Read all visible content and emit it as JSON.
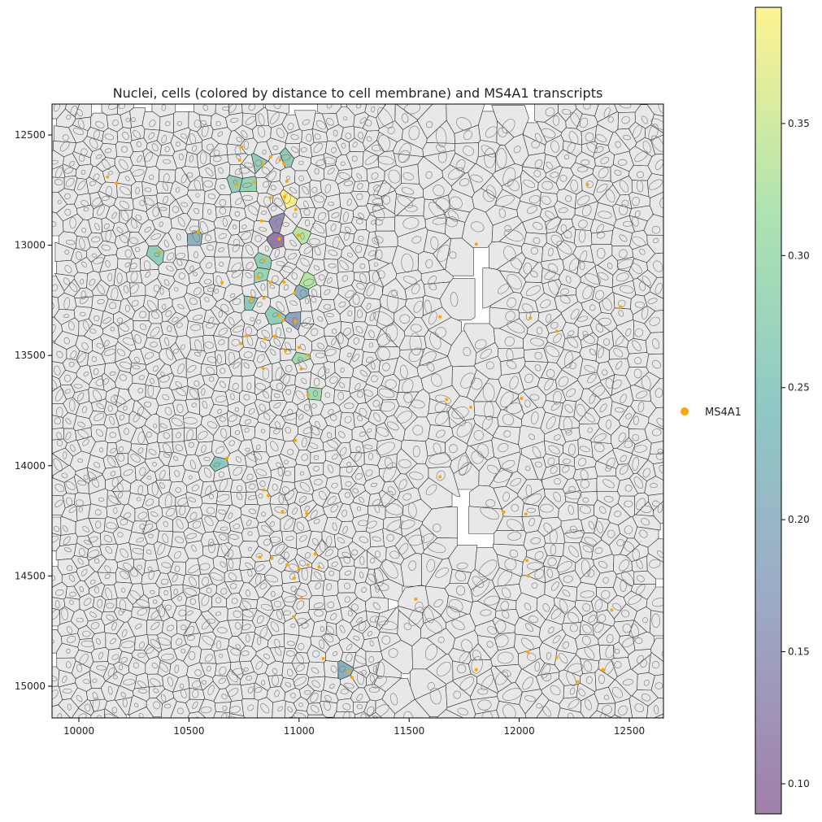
{
  "chart_data": {
    "type": "scatter",
    "title": "Nuclei, cells (colored by distance to cell membrane) and MS4A1 transcripts",
    "xlim": [
      9878,
      12655
    ],
    "ylim": [
      15144,
      12360
    ],
    "y_inverted": true,
    "xticks": [
      10000,
      10500,
      11000,
      11500,
      12000,
      12500
    ],
    "yticks": [
      12500,
      13000,
      13500,
      14000,
      14500,
      15000
    ],
    "grid": false,
    "cell_fill_default": "#e8e8e8",
    "colorbar": {
      "colormap": "viridis",
      "alpha": 0.5,
      "range": [
        0.0886,
        0.394
      ],
      "ticks": [
        "0.10",
        "0.15",
        "0.20",
        "0.25",
        "0.30",
        "0.35"
      ],
      "tick_values": [
        0.1,
        0.15,
        0.2,
        0.25,
        0.3,
        0.35
      ]
    },
    "legend": {
      "placement": "right",
      "entries": [
        {
          "label": "MS4A1",
          "color": "#ffa500"
        }
      ]
    },
    "colored_cells": [
      {
        "x": 10915,
        "y": 12589,
        "value": 0.12
      },
      {
        "x": 10930,
        "y": 12781,
        "value": 0.39
      },
      {
        "x": 10904,
        "y": 12995,
        "value": 0.1
      },
      {
        "x": 10904,
        "y": 12877,
        "value": 0.13
      },
      {
        "x": 10845,
        "y": 13061,
        "value": 0.27
      },
      {
        "x": 10996,
        "y": 12958,
        "value": 0.33
      },
      {
        "x": 11044,
        "y": 13172,
        "value": 0.33
      },
      {
        "x": 10657,
        "y": 13969,
        "value": 0.25
      },
      {
        "x": 10361,
        "y": 13032,
        "value": 0.27
      },
      {
        "x": 10553,
        "y": 12947,
        "value": 0.21
      },
      {
        "x": 10823,
        "y": 13157,
        "value": 0.29
      },
      {
        "x": 10779,
        "y": 13246,
        "value": 0.26
      },
      {
        "x": 10908,
        "y": 13312,
        "value": 0.27
      },
      {
        "x": 10978,
        "y": 13216,
        "value": 0.21
      },
      {
        "x": 10982,
        "y": 13345,
        "value": 0.17
      },
      {
        "x": 11037,
        "y": 13504,
        "value": 0.3
      },
      {
        "x": 11044,
        "y": 13681,
        "value": 0.3
      },
      {
        "x": 10705,
        "y": 12725,
        "value": 0.27
      },
      {
        "x": 10779,
        "y": 12707,
        "value": 0.28
      },
      {
        "x": 10830,
        "y": 12626,
        "value": 0.27
      },
      {
        "x": 10944,
        "y": 12626,
        "value": 0.26
      },
      {
        "x": 11228,
        "y": 14939,
        "value": 0.2
      }
    ],
    "transcripts": {
      "gene": "MS4A1",
      "points": [
        [
          10914,
          12612
        ],
        [
          10931,
          12631
        ],
        [
          10870,
          12600
        ],
        [
          10837,
          12634
        ],
        [
          10717,
          12726
        ],
        [
          10797,
          12715
        ],
        [
          10935,
          12781
        ],
        [
          10985,
          12838
        ],
        [
          10830,
          12890
        ],
        [
          10870,
          12785
        ],
        [
          10910,
          12972
        ],
        [
          10997,
          12955
        ],
        [
          10842,
          13068
        ],
        [
          10542,
          12940
        ],
        [
          10365,
          13032
        ],
        [
          10815,
          13147
        ],
        [
          10870,
          13170
        ],
        [
          10932,
          13168
        ],
        [
          10784,
          13243
        ],
        [
          10840,
          13240
        ],
        [
          10912,
          13316
        ],
        [
          10980,
          13215
        ],
        [
          10985,
          13345
        ],
        [
          10890,
          13413
        ],
        [
          10928,
          13340
        ],
        [
          10737,
          13446
        ],
        [
          10762,
          13410
        ],
        [
          10845,
          13425
        ],
        [
          10938,
          13478
        ],
        [
          10999,
          13464
        ],
        [
          11040,
          13498
        ],
        [
          11010,
          13561
        ],
        [
          11040,
          13680
        ],
        [
          10835,
          13557
        ],
        [
          10983,
          13885
        ],
        [
          10673,
          13965
        ],
        [
          10840,
          14110
        ],
        [
          10860,
          14135
        ],
        [
          10925,
          14208
        ],
        [
          11035,
          14216
        ],
        [
          10822,
          14415
        ],
        [
          10877,
          14420
        ],
        [
          10945,
          14450
        ],
        [
          11000,
          14468
        ],
        [
          11040,
          14450
        ],
        [
          11073,
          14400
        ],
        [
          11090,
          14460
        ],
        [
          10978,
          14510
        ],
        [
          11010,
          14600
        ],
        [
          10975,
          14685
        ],
        [
          11110,
          14875
        ],
        [
          11225,
          14935
        ],
        [
          11240,
          14960
        ],
        [
          11530,
          14605
        ],
        [
          11640,
          14050
        ],
        [
          11670,
          13700
        ],
        [
          11780,
          13735
        ],
        [
          11640,
          13325
        ],
        [
          11805,
          12995
        ],
        [
          12050,
          13330
        ],
        [
          12010,
          13695
        ],
        [
          12030,
          14220
        ],
        [
          12035,
          14430
        ],
        [
          12040,
          14500
        ],
        [
          11930,
          14210
        ],
        [
          11805,
          14925
        ],
        [
          12040,
          14845
        ],
        [
          12170,
          14870
        ],
        [
          12265,
          14980
        ],
        [
          12380,
          14925
        ],
        [
          12420,
          14655
        ],
        [
          12460,
          13280
        ],
        [
          12310,
          12725
        ],
        [
          12170,
          13390
        ],
        [
          10740,
          12555
        ],
        [
          10730,
          12615
        ],
        [
          10130,
          12690
        ],
        [
          10170,
          12720
        ],
        [
          10650,
          13170
        ],
        [
          10945,
          12710
        ]
      ]
    }
  }
}
